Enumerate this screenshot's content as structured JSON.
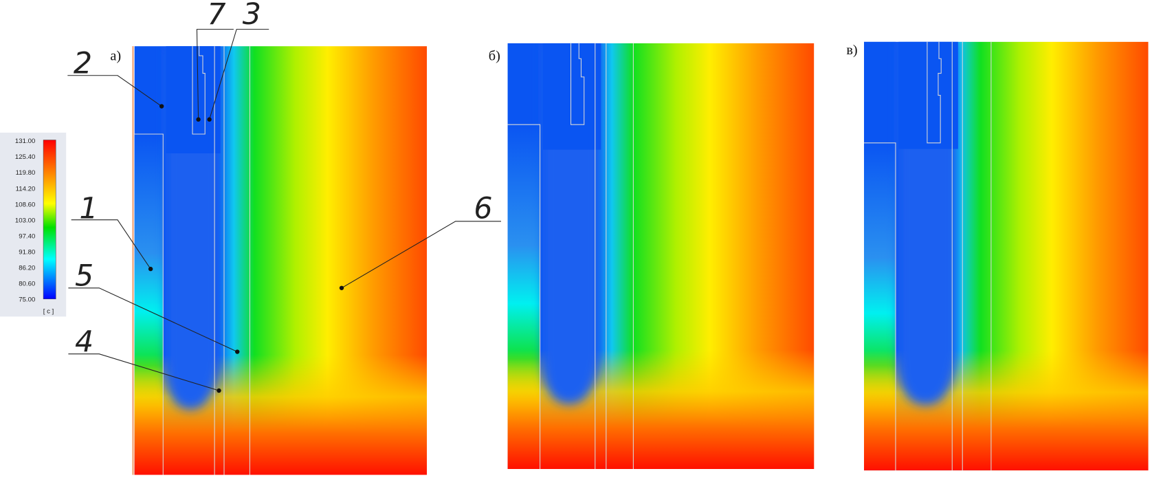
{
  "legend": {
    "ticks": [
      "131.00",
      "125.40",
      "119.80",
      "114.20",
      "108.60",
      "103.00",
      "97.40",
      "91.80",
      "86.20",
      "80.60",
      "75.00"
    ],
    "unit": "[ c ]"
  },
  "panels": [
    {
      "label": "а)"
    },
    {
      "label": "б)"
    },
    {
      "label": "в)"
    }
  ],
  "callouts": [
    "2",
    "7",
    "3",
    "1",
    "5",
    "4",
    "6"
  ]
}
